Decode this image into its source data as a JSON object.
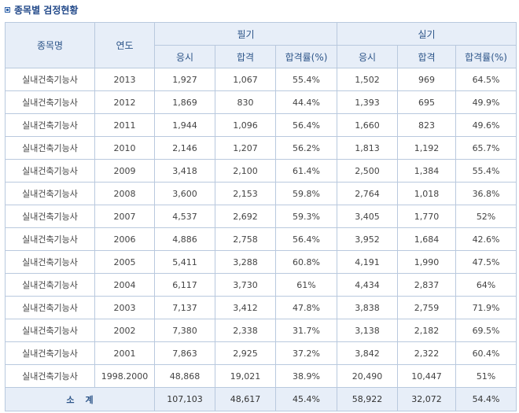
{
  "title": "종목별 검정현황",
  "headers": {
    "name": "종목명",
    "year": "연도",
    "written": "필기",
    "practical": "실기",
    "applicants": "응시",
    "passed": "합격",
    "rate": "합격률(%)"
  },
  "rows": [
    {
      "name": "실내건축기능사",
      "year": "2013",
      "w_app": "1,927",
      "w_pass": "1,067",
      "w_rate": "55.4%",
      "p_app": "1,502",
      "p_pass": "969",
      "p_rate": "64.5%"
    },
    {
      "name": "실내건축기능사",
      "year": "2012",
      "w_app": "1,869",
      "w_pass": "830",
      "w_rate": "44.4%",
      "p_app": "1,393",
      "p_pass": "695",
      "p_rate": "49.9%"
    },
    {
      "name": "실내건축기능사",
      "year": "2011",
      "w_app": "1,944",
      "w_pass": "1,096",
      "w_rate": "56.4%",
      "p_app": "1,660",
      "p_pass": "823",
      "p_rate": "49.6%"
    },
    {
      "name": "실내건축기능사",
      "year": "2010",
      "w_app": "2,146",
      "w_pass": "1,207",
      "w_rate": "56.2%",
      "p_app": "1,813",
      "p_pass": "1,192",
      "p_rate": "65.7%"
    },
    {
      "name": "실내건축기능사",
      "year": "2009",
      "w_app": "3,418",
      "w_pass": "2,100",
      "w_rate": "61.4%",
      "p_app": "2,500",
      "p_pass": "1,384",
      "p_rate": "55.4%"
    },
    {
      "name": "실내건축기능사",
      "year": "2008",
      "w_app": "3,600",
      "w_pass": "2,153",
      "w_rate": "59.8%",
      "p_app": "2,764",
      "p_pass": "1,018",
      "p_rate": "36.8%"
    },
    {
      "name": "실내건축기능사",
      "year": "2007",
      "w_app": "4,537",
      "w_pass": "2,692",
      "w_rate": "59.3%",
      "p_app": "3,405",
      "p_pass": "1,770",
      "p_rate": "52%"
    },
    {
      "name": "실내건축기능사",
      "year": "2006",
      "w_app": "4,886",
      "w_pass": "2,758",
      "w_rate": "56.4%",
      "p_app": "3,952",
      "p_pass": "1,684",
      "p_rate": "42.6%"
    },
    {
      "name": "실내건축기능사",
      "year": "2005",
      "w_app": "5,411",
      "w_pass": "3,288",
      "w_rate": "60.8%",
      "p_app": "4,191",
      "p_pass": "1,990",
      "p_rate": "47.5%"
    },
    {
      "name": "실내건축기능사",
      "year": "2004",
      "w_app": "6,117",
      "w_pass": "3,730",
      "w_rate": "61%",
      "p_app": "4,434",
      "p_pass": "2,837",
      "p_rate": "64%"
    },
    {
      "name": "실내건축기능사",
      "year": "2003",
      "w_app": "7,137",
      "w_pass": "3,412",
      "w_rate": "47.8%",
      "p_app": "3,838",
      "p_pass": "2,759",
      "p_rate": "71.9%"
    },
    {
      "name": "실내건축기능사",
      "year": "2002",
      "w_app": "7,380",
      "w_pass": "2,338",
      "w_rate": "31.7%",
      "p_app": "3,138",
      "p_pass": "2,182",
      "p_rate": "69.5%"
    },
    {
      "name": "실내건축기능사",
      "year": "2001",
      "w_app": "7,863",
      "w_pass": "2,925",
      "w_rate": "37.2%",
      "p_app": "3,842",
      "p_pass": "2,322",
      "p_rate": "60.4%"
    },
    {
      "name": "실내건축기능사",
      "year": "1998.2000",
      "w_app": "48,868",
      "w_pass": "19,021",
      "w_rate": "38.9%",
      "p_app": "20,490",
      "p_pass": "10,447",
      "p_rate": "51%"
    }
  ],
  "total": {
    "label": "소계",
    "w_app": "107,103",
    "w_pass": "48,617",
    "w_rate": "45.4%",
    "p_app": "58,922",
    "p_pass": "32,072",
    "p_rate": "54.4%"
  },
  "colors": {
    "header_bg": "#e7eef8",
    "border": "#b9c9de",
    "header_text": "#2d5589"
  }
}
